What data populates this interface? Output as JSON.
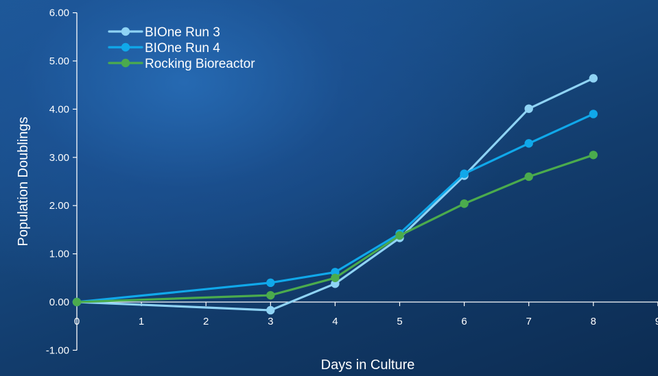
{
  "chart_data": {
    "type": "line",
    "title": "",
    "xlabel": "Days in Culture",
    "ylabel": "Population Doublings",
    "xlim": [
      0,
      9
    ],
    "ylim": [
      -1,
      6
    ],
    "x_ticks": [
      "0",
      "1",
      "2",
      "3",
      "4",
      "5",
      "6",
      "7",
      "8",
      "9"
    ],
    "y_ticks": [
      "-1.00",
      "0.00",
      "1.00",
      "2.00",
      "3.00",
      "4.00",
      "5.00",
      "6.00"
    ],
    "grid": false,
    "legend_position": "top-left",
    "series": [
      {
        "name": "BIOne Run 3",
        "color": "#8fd3f4",
        "points": [
          [
            0,
            0.0
          ],
          [
            3,
            -0.17
          ],
          [
            4,
            0.38
          ],
          [
            5,
            1.33
          ],
          [
            6,
            2.62
          ],
          [
            7,
            4.01
          ],
          [
            8,
            4.64
          ]
        ]
      },
      {
        "name": "BIOne Run 4",
        "color": "#10a8ea",
        "points": [
          [
            0,
            0.0
          ],
          [
            3,
            0.4
          ],
          [
            4,
            0.62
          ],
          [
            5,
            1.42
          ],
          [
            6,
            2.66
          ],
          [
            7,
            3.29
          ],
          [
            8,
            3.9
          ]
        ]
      },
      {
        "name": "Rocking Bioreactor",
        "color": "#4bab4d",
        "points": [
          [
            0,
            0.0
          ],
          [
            3,
            0.14
          ],
          [
            4,
            0.5
          ],
          [
            5,
            1.38
          ],
          [
            6,
            2.04
          ],
          [
            7,
            2.6
          ],
          [
            8,
            3.05
          ]
        ]
      }
    ]
  }
}
